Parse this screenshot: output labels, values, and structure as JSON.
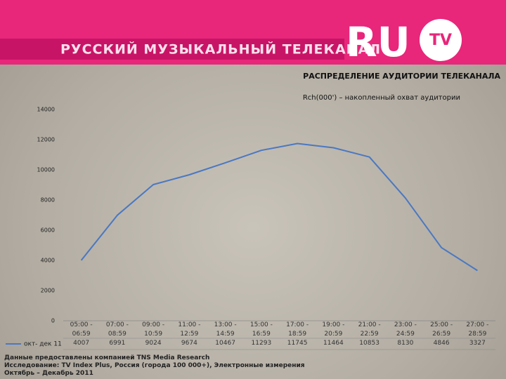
{
  "header": {
    "banner": "РУССКИЙ МУЗЫКАЛЬНЫЙ ТЕЛЕКАНАЛ",
    "logo": "RU",
    "logo_badge": "TV"
  },
  "chart_data": {
    "type": "line",
    "title": "РАСПРЕДЕЛЕНИЕ АУДИТОРИИ ТЕЛЕКАНАЛА",
    "subtitle": "Rch(000') – накопленный охват аудитории",
    "categories": [
      "05:00 -\n06:59",
      "07:00 -\n08:59",
      "09:00 -\n10:59",
      "11:00 -\n12:59",
      "13:00 -\n14:59",
      "15:00 -\n16:59",
      "17:00 -\n18:59",
      "19:00 -\n20:59",
      "21:00 -\n22:59",
      "23:00 -\n24:59",
      "25:00 -\n26:59",
      "27:00 -\n28:59"
    ],
    "series": [
      {
        "name": "окт- дек 11",
        "color": "#4a78c2",
        "values": [
          4007,
          6991,
          9024,
          9674,
          10467,
          11293,
          11745,
          11464,
          10853,
          8130,
          4846,
          3327
        ]
      }
    ],
    "ylim": [
      0,
      14000
    ],
    "yticks": [
      0,
      2000,
      4000,
      6000,
      8000,
      10000,
      12000,
      14000
    ],
    "grid": false
  },
  "footer": [
    "Данные предоставлены компанией TNS Media Research",
    "Исследование: TV Index Plus, Россия (города 100 000+), Электронные измерения",
    "Октябрь – Декабрь 2011"
  ]
}
